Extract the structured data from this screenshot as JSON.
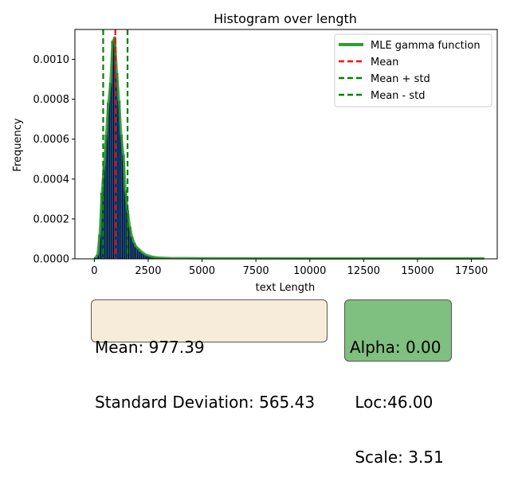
{
  "chart_data": {
    "type": "bar",
    "title": "Histogram over length",
    "xlabel": "text Length",
    "ylabel": "Frequency",
    "xlim": [
      -900,
      18700
    ],
    "ylim": [
      0,
      0.00115
    ],
    "xticks": [
      0,
      2500,
      5000,
      7500,
      10000,
      12500,
      15000,
      17500
    ],
    "xtick_labels": [
      "0",
      "2500",
      "5000",
      "7500",
      "10000",
      "12500",
      "15000",
      "17500"
    ],
    "yticks": [
      0,
      0.0002,
      0.0004,
      0.0006,
      0.0008,
      0.001
    ],
    "ytick_labels": [
      "0.0000",
      "0.0002",
      "0.0004",
      "0.0006",
      "0.0008",
      "0.0010"
    ],
    "bins": {
      "start": 0,
      "width": 100,
      "heights": [
        5e-06,
        2e-05,
        0.00012,
        0.00033,
        0.00046,
        0.00062,
        0.00078,
        0.00088,
        0.00109,
        0.00111,
        0.00093,
        0.00079,
        0.00062,
        0.00052,
        0.00034,
        0.00024,
        0.00016,
        0.00011,
        8e-05,
        6e-05,
        5e-05,
        3.5e-05,
        2.5e-05,
        2e-05,
        1.5e-05,
        1.2e-05,
        1e-05,
        8e-06,
        6e-06,
        5e-06,
        4e-06,
        3.5e-06,
        3e-06,
        2.5e-06,
        2e-06,
        2e-06
      ]
    },
    "gamma_curve": {
      "name": "MLE gamma function",
      "color": "#2ca02c",
      "x": [
        46,
        150,
        250,
        350,
        450,
        550,
        650,
        750,
        850,
        950,
        1050,
        1150,
        1250,
        1350,
        1450,
        1550,
        1650,
        1750,
        1850,
        1950,
        2050,
        2200,
        2400,
        2700,
        3000,
        3500,
        5000,
        7500,
        10000,
        12500,
        15000,
        18100
      ],
      "y": [
        5e-06,
        2e-05,
        0.00012,
        0.00033,
        0.00046,
        0.00062,
        0.00078,
        0.00088,
        0.00109,
        0.00111,
        0.00093,
        0.00079,
        0.00062,
        0.00052,
        0.00034,
        0.00024,
        0.00016,
        0.00011,
        8e-05,
        6e-05,
        5e-05,
        3.5e-05,
        2e-05,
        1e-05,
        6e-06,
        4e-06,
        3e-06,
        2.5e-06,
        2e-06,
        2e-06,
        2e-06,
        2e-06
      ]
    },
    "vlines": [
      {
        "name": "Mean",
        "x": 977.39,
        "color": "#ff0000"
      },
      {
        "name": "Mean + std",
        "x": 1542.82,
        "color": "#008000"
      },
      {
        "name": "Mean - std",
        "x": 411.96,
        "color": "#008000"
      }
    ],
    "legend": {
      "placement": "top-right",
      "entries": [
        "MLE gamma function",
        "Mean",
        "Mean + std",
        "Mean - std"
      ]
    },
    "bar_color": "#1f4e8c",
    "grid": false
  },
  "stats_box": {
    "mean_text": "Mean: 977.39",
    "std_text": "Standard Deviation: 565.43"
  },
  "params_box": {
    "alpha_text": "Alpha: 0.00",
    "loc_text": " Loc:46.00",
    "scale_text": " Scale: 3.51"
  }
}
